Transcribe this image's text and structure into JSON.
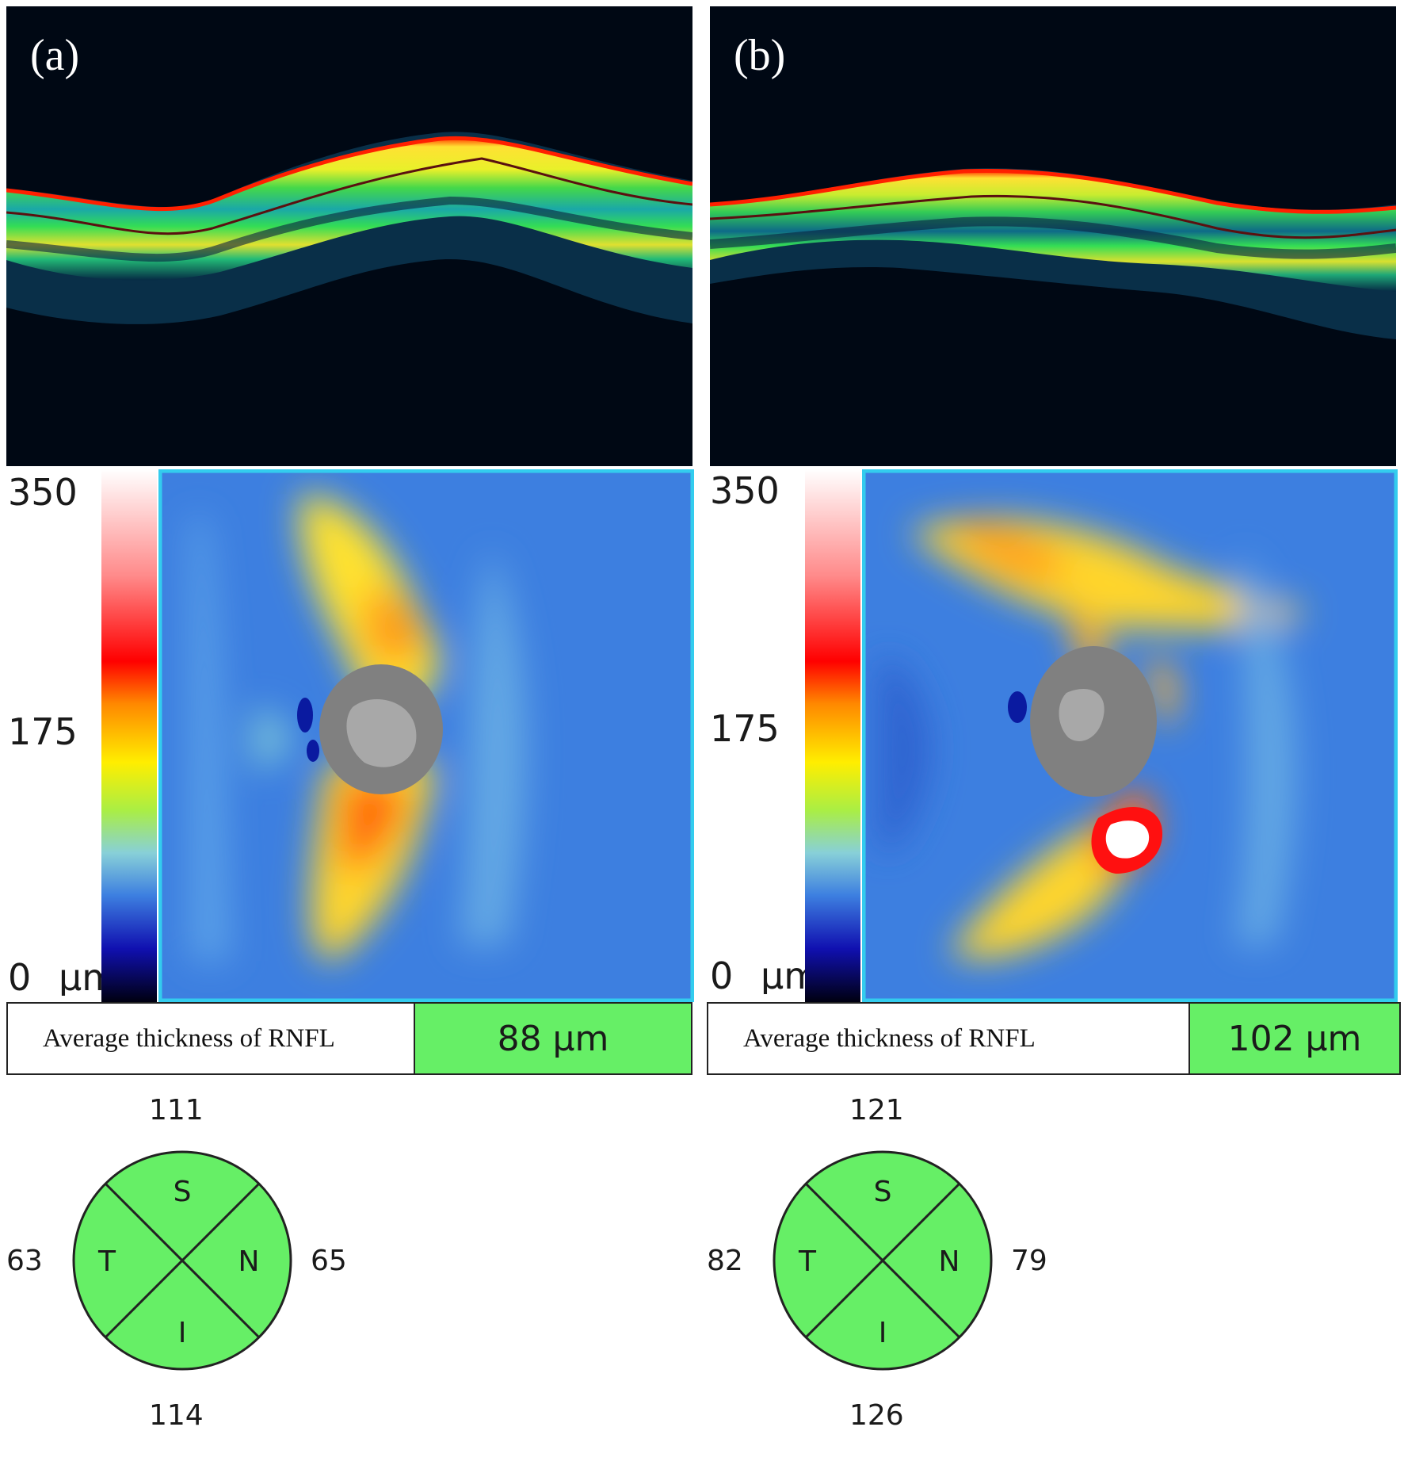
{
  "colors": {
    "background": "#000814",
    "map_base": "#3d7fe0",
    "sector_fill": "#66ef66",
    "disc_gray": "#808080",
    "cup_gray": "#a8a8a8",
    "frame_cyan": "#33ccee"
  },
  "colorbar": {
    "tick_top": "350",
    "tick_mid": "175",
    "tick_bottom": "0",
    "unit": "μm"
  },
  "panels": [
    {
      "label": "(a)",
      "average_label": "Average thickness of  RNFL",
      "average_value": "88 μm",
      "sectors": {
        "S": "S",
        "T": "T",
        "N": "N",
        "I": "I"
      },
      "sector_values": {
        "superior": "111",
        "temporal": "63",
        "nasal": "65",
        "inferior": "114"
      }
    },
    {
      "label": "(b)",
      "average_label": "Average thickness of  RNFL",
      "average_value": "102 μm",
      "sectors": {
        "S": "S",
        "T": "T",
        "N": "N",
        "I": "I"
      },
      "sector_values": {
        "superior": "121",
        "temporal": "82",
        "nasal": "79",
        "inferior": "126"
      }
    }
  ]
}
